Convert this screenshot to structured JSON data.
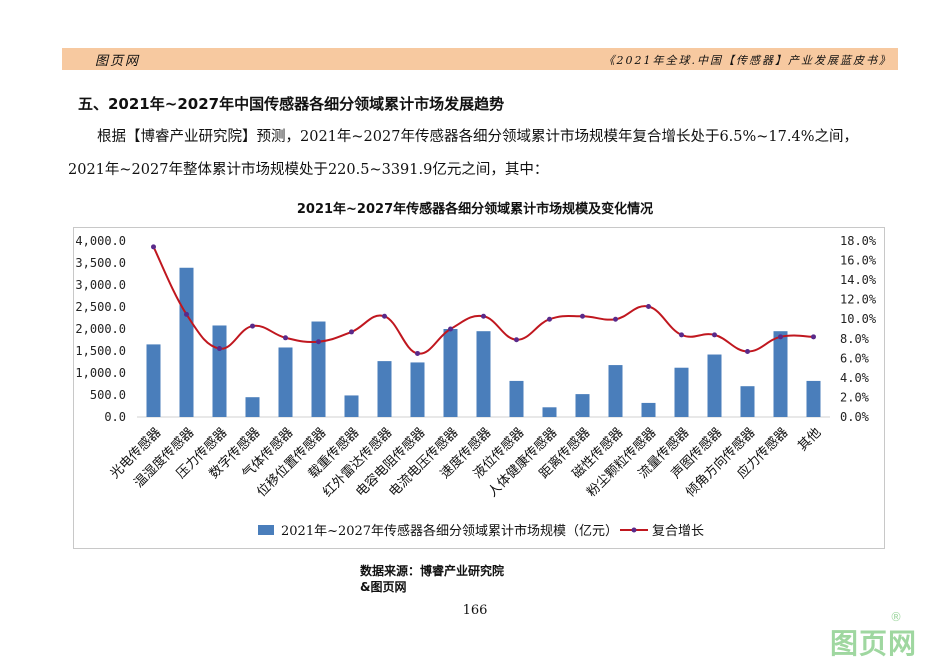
{
  "header": {
    "left": "图页网",
    "right": "《2021年全球.中国【传感器】产业发展蓝皮书》"
  },
  "section_title": "五、2021年~2027年中国传感器各细分领域累计市场发展趋势",
  "paragraph": {
    "line1": "根据【博睿产业研究院】预测，2021年~2027年传感器各细分领域累计市场规模年复合增长处于6.5%~17.4%之间，",
    "line2": "2021年~2027年整体累计市场规模处于220.5~3391.9亿元之间，其中："
  },
  "source": {
    "line1": "数据来源：博睿产业研究院",
    "line2": "&图页网"
  },
  "page_number": "166",
  "watermark": {
    "text": "图页网",
    "reg": "®"
  },
  "colors": {
    "bar": "#4a7ebb",
    "line": "#c0171f",
    "marker": "#5a2a8a",
    "header_band": "#f7c9a0"
  },
  "chart_data": {
    "type": "bar",
    "title": "2021年~2027年传感器各细分领域累计市场规模及变化情况",
    "categories": [
      "光电传感器",
      "温湿度传感器",
      "压力传感器",
      "数字传感器",
      "气体传感器",
      "位移位置传感器",
      "载重传感器",
      "红外雷达传感器",
      "电容电阻传感器",
      "电流电压传感器",
      "速度传感器",
      "液位传感器",
      "人体健康传感器",
      "距离传感器",
      "磁性传感器",
      "粉尘颗粒传感器",
      "流量传感器",
      "声图传感器",
      "倾角方向传感器",
      "应力传感器",
      "其他"
    ],
    "series": [
      {
        "name": "2021年~2027年传感器各细分领域累计市场规模（亿元）",
        "type": "bar",
        "axis": "left",
        "values": [
          1650,
          3391.9,
          2080,
          450,
          1580,
          2170,
          490,
          1270,
          1240,
          2000,
          1950,
          820,
          220.5,
          520,
          1180,
          320,
          1120,
          1420,
          700,
          1950,
          820
        ]
      },
      {
        "name": "复合增长",
        "type": "line",
        "axis": "right",
        "values": [
          17.4,
          10.5,
          7.0,
          9.3,
          8.1,
          7.7,
          8.7,
          10.3,
          6.5,
          9.0,
          10.3,
          7.9,
          10.0,
          10.3,
          10.0,
          11.3,
          8.4,
          8.4,
          6.7,
          8.2,
          8.2
        ]
      }
    ],
    "y_left": {
      "ylim": [
        0,
        4000
      ],
      "ticks": [
        "0.0",
        "500.0",
        "1,000.0",
        "1,500.0",
        "2,000.0",
        "2,500.0",
        "3,000.0",
        "3,500.0",
        "4,000.0"
      ]
    },
    "y_right": {
      "ylim": [
        0,
        18
      ],
      "ticks": [
        "0.0%",
        "2.0%",
        "4.0%",
        "6.0%",
        "8.0%",
        "10.0%",
        "12.0%",
        "14.0%",
        "16.0%",
        "18.0%"
      ]
    },
    "grid": false,
    "legend_position": "bottom"
  }
}
